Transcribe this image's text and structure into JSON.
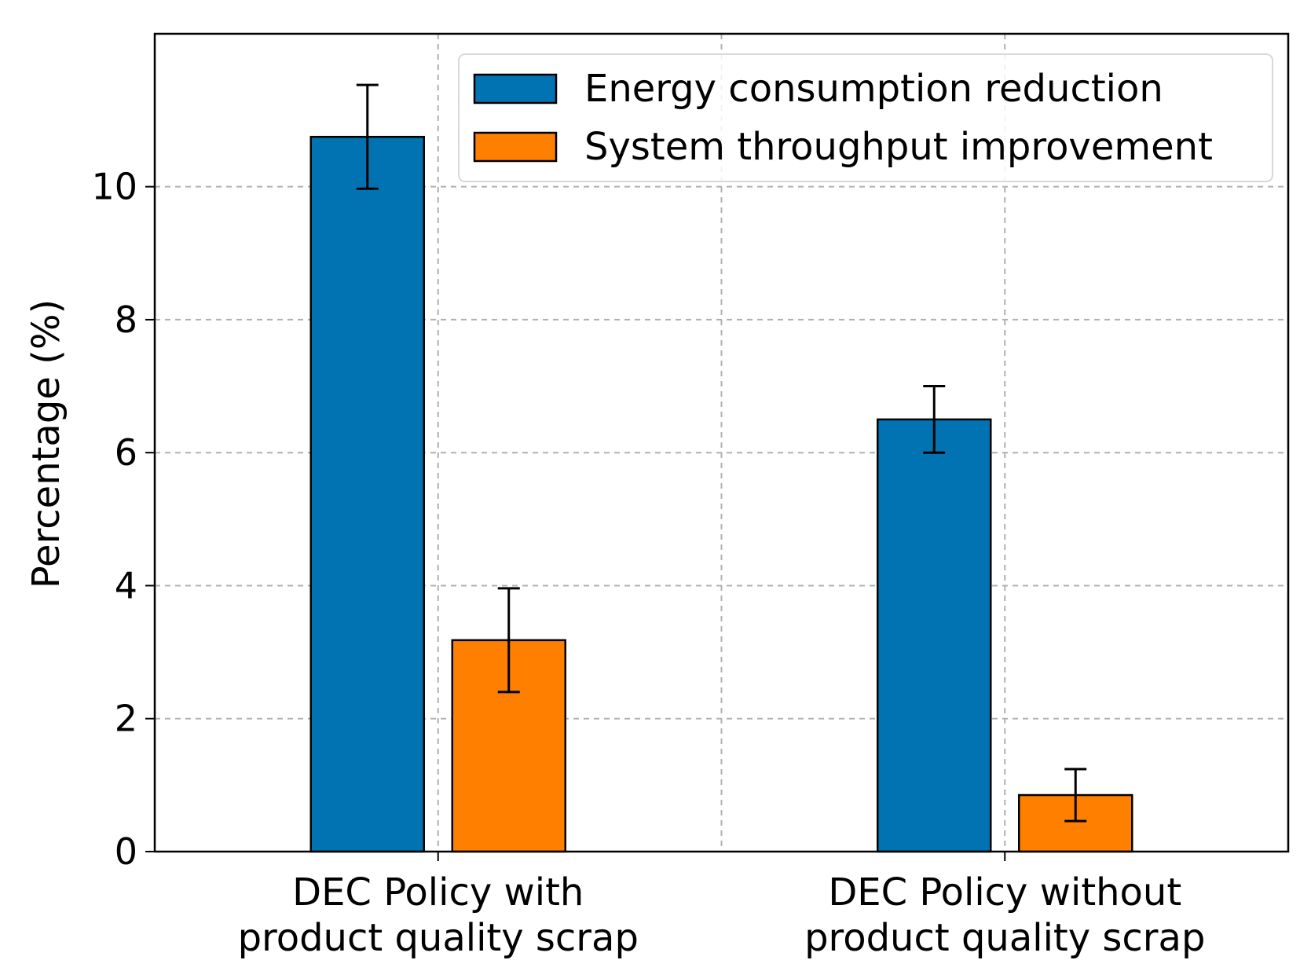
{
  "chart_data": {
    "type": "bar",
    "title": "",
    "xlabel": "",
    "ylabel": "Percentage (%)",
    "ylim": [
      0,
      12.3
    ],
    "yticks": [
      0,
      2,
      4,
      6,
      8,
      10
    ],
    "grid": true,
    "legend_position": "top-right",
    "categories": [
      [
        "DEC Policy with",
        "product quality scrap"
      ],
      [
        "DEC Policy without",
        "product quality scrap"
      ]
    ],
    "series": [
      {
        "name": "Energy consumption reduction",
        "color": "#0173b2",
        "values": [
          10.75,
          6.5
        ],
        "errors": [
          0.78,
          0.5
        ]
      },
      {
        "name": "System throughput improvement",
        "color": "#ff7f00",
        "values": [
          3.18,
          0.85
        ],
        "errors": [
          0.78,
          0.39
        ]
      }
    ]
  }
}
